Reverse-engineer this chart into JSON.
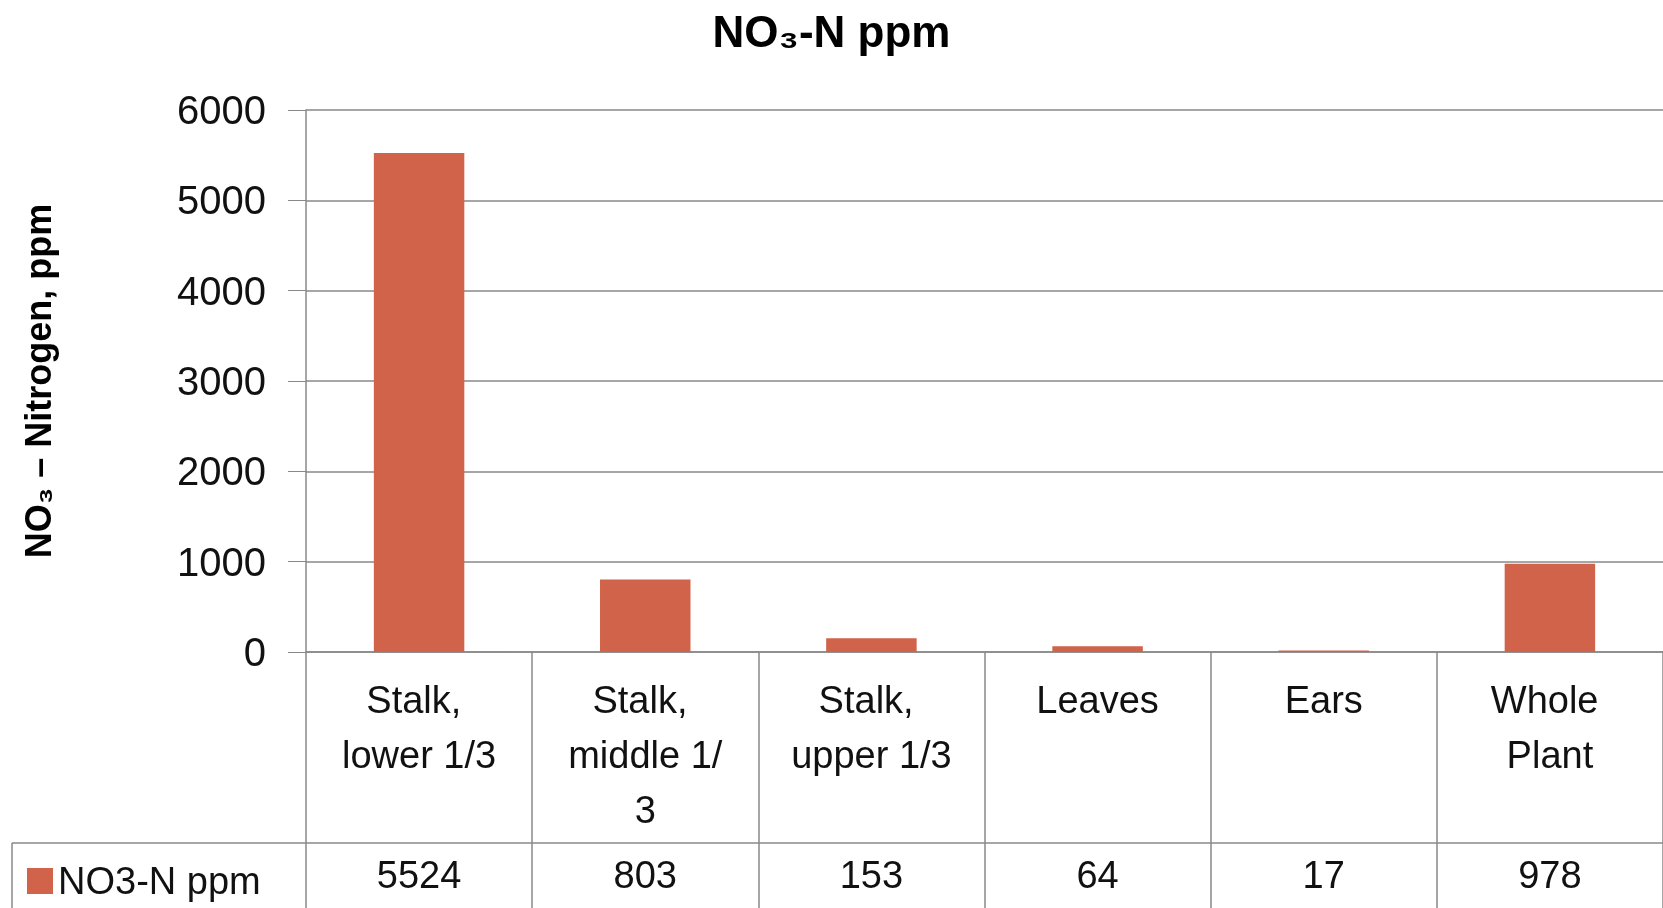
{
  "chart_data": {
    "type": "bar",
    "title": "NO₃-N ppm",
    "ylabel": "NO₃ – Nitrogen, ppm",
    "categories": [
      "Stalk, lower 1/3",
      "Stalk, middle 1/3",
      "Stalk, upper 1/3",
      "Leaves",
      "Ears",
      "Whole Plant"
    ],
    "series": [
      {
        "name": "NO3-N ppm",
        "color": "#d0634a",
        "values": [
          5524,
          803,
          153,
          64,
          17,
          978
        ]
      }
    ],
    "ylim": [
      0,
      6000
    ],
    "yticks": [
      0,
      1000,
      2000,
      3000,
      4000,
      5000,
      6000
    ],
    "grid": "y",
    "legend": "bottom left",
    "data_labels": true
  }
}
